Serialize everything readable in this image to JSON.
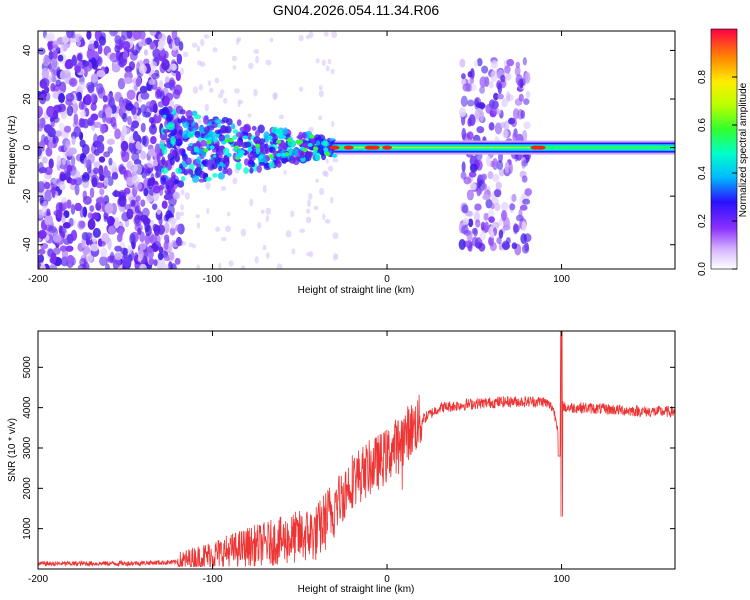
{
  "title": "GN04.2026.054.11.34.R06",
  "chart_data": [
    {
      "type": "heatmap",
      "xlabel": "Height of straight line (km)",
      "ylabel": "Frequency (Hz)",
      "xlim": [
        -200,
        165
      ],
      "ylim": [
        -50,
        48
      ],
      "xticks": [
        -200,
        -100,
        0,
        100
      ],
      "yticks": [
        -40,
        -20,
        0,
        20,
        40
      ],
      "colorbar": {
        "label": "Normalized spectral amplitude",
        "range": [
          0,
          1
        ],
        "ticks": [
          0.0,
          0.2,
          0.4,
          0.6,
          0.8
        ]
      },
      "features": {
        "noise_region_x": [
          -200,
          -118
        ],
        "transition_region_x": [
          -130,
          -30
        ],
        "signal_line_frequency": 0,
        "signal_line_start_x": -30,
        "noise_patch_x": [
          43,
          81
        ]
      }
    },
    {
      "type": "line",
      "xlabel": "Height of straight line (km)",
      "ylabel": "SNR (10 * v/v)",
      "xlim": [
        -200,
        165
      ],
      "ylim": [
        0,
        5900
      ],
      "xticks": [
        -200,
        -100,
        0,
        100
      ],
      "yticks": [
        1000,
        2000,
        3000,
        4000,
        5000
      ],
      "color": "#ee3333",
      "series": [
        {
          "name": "SNR",
          "x": [
            -200,
            -150,
            -120,
            -100,
            -80,
            -60,
            -40,
            -20,
            0,
            10,
            20,
            30,
            50,
            70,
            90,
            95,
            98,
            100,
            102,
            110,
            130,
            150,
            165
          ],
          "values": [
            130,
            140,
            170,
            350,
            550,
            700,
            900,
            2200,
            2800,
            3300,
            3700,
            4000,
            4100,
            4150,
            4150,
            4000,
            3500,
            4100,
            4000,
            4000,
            3950,
            3900,
            3900
          ]
        }
      ]
    }
  ]
}
